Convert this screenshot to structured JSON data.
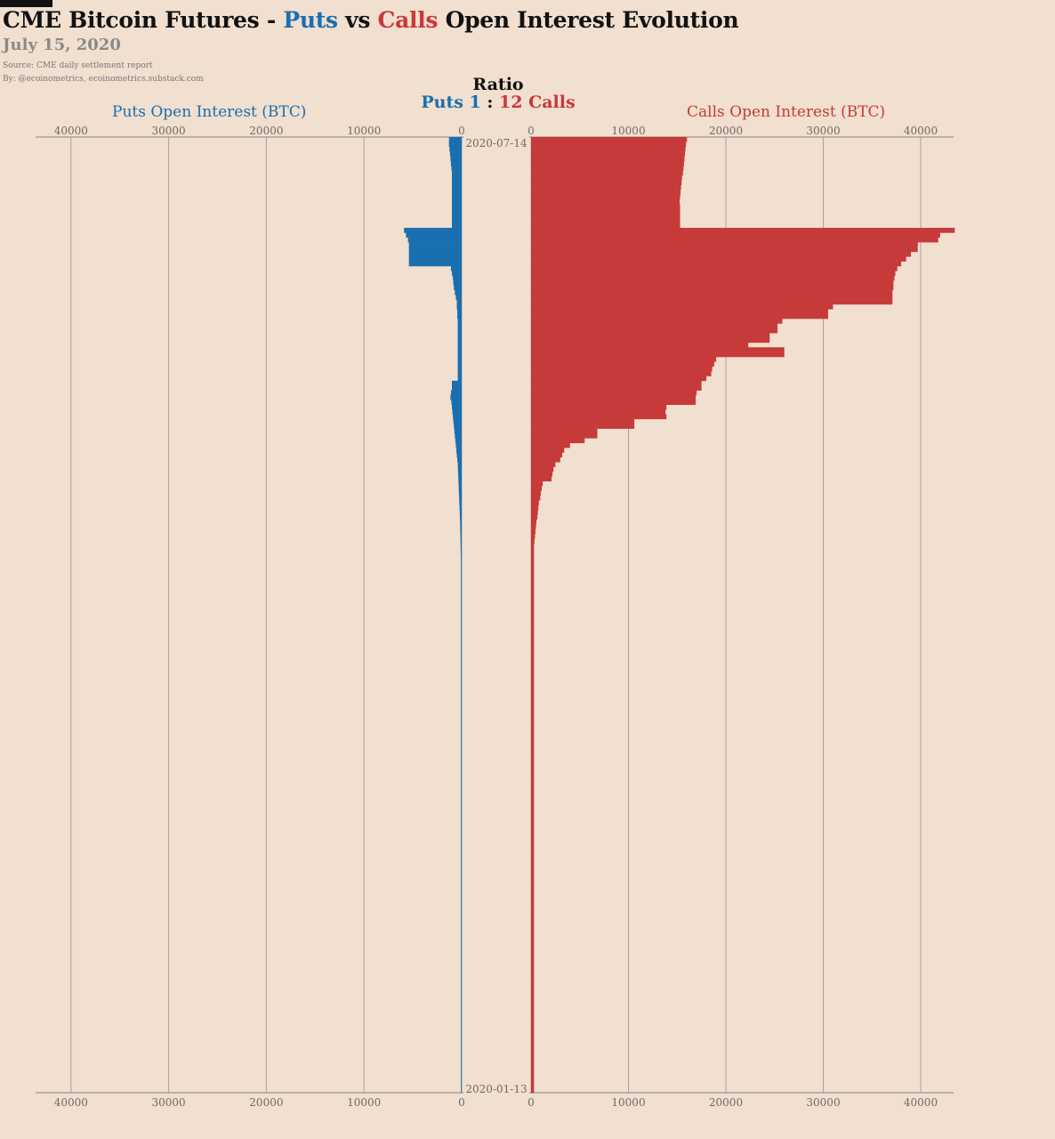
{
  "header": {
    "title_prefix": "CME Bitcoin Futures - ",
    "title_puts": "Puts",
    "title_vs": " vs ",
    "title_calls": "Calls",
    "title_suffix": " Open Interest Evolution",
    "date": "July 15, 2020",
    "source": "Source: CME daily settlement report",
    "by": "By: @ecoinometrics, ecoinometrics.substack.com"
  },
  "ratio": {
    "title": "Ratio",
    "puts_label": "Puts 1",
    "separator": " : ",
    "calls_label": "12 Calls"
  },
  "colors": {
    "puts": "#1a6fb0",
    "calls": "#c63a3a",
    "background": "#f1dfcf",
    "grid": "#a9a29b"
  },
  "chart_data": {
    "type": "bar",
    "orientation": "horizontal-mirrored",
    "grid": true,
    "date_range": [
      "2020-01-13",
      "2020-07-14"
    ],
    "date_labels": {
      "top": "2020-07-14",
      "bottom": "2020-01-13"
    },
    "puts_axis": {
      "label": "Puts Open Interest (BTC)",
      "ticks": [
        40000,
        30000,
        20000,
        10000,
        0
      ],
      "range": [
        0,
        44000
      ]
    },
    "calls_axis": {
      "label": "Calls Open Interest (BTC)",
      "ticks": [
        0,
        10000,
        20000,
        30000,
        40000
      ],
      "range": [
        0,
        43500
      ]
    },
    "series": [
      {
        "name": "Puts",
        "color": "#1a6fb0",
        "values": [
          1300,
          1300,
          1250,
          1200,
          1150,
          1100,
          1050,
          1000,
          1000,
          1000,
          1000,
          1000,
          1000,
          1000,
          1000,
          1000,
          1000,
          1000,
          1000,
          5900,
          5700,
          5500,
          5400,
          5400,
          5400,
          5400,
          5400,
          1100,
          1000,
          900,
          850,
          800,
          700,
          600,
          500,
          500,
          450,
          450,
          400,
          400,
          400,
          400,
          400,
          400,
          400,
          400,
          400,
          400,
          400,
          400,
          400,
          1000,
          1000,
          1100,
          1150,
          1050,
          1000,
          950,
          900,
          850,
          800,
          750,
          700,
          650,
          600,
          550,
          500,
          450,
          400,
          380,
          360,
          340,
          320,
          300,
          280,
          260,
          240,
          220,
          200,
          180,
          160,
          150,
          140,
          130,
          120,
          110,
          100,
          90,
          80,
          80,
          80,
          80,
          80,
          80,
          80,
          80,
          80,
          80,
          80,
          80,
          80,
          80,
          80,
          80,
          80,
          80,
          80,
          80,
          80,
          80,
          80,
          80,
          80,
          80,
          80,
          80,
          80,
          80,
          80,
          80,
          80,
          80,
          80,
          80,
          80,
          80,
          80,
          80,
          80,
          80,
          80,
          80,
          80,
          80,
          80,
          80,
          80,
          80,
          80,
          80,
          80,
          80,
          80,
          80,
          80,
          80,
          80,
          80,
          80,
          80,
          80,
          80,
          80,
          80,
          80,
          80,
          80,
          80,
          80,
          80,
          80,
          80,
          80,
          80,
          80,
          80,
          80,
          80,
          80,
          80,
          80,
          80,
          80,
          80,
          80,
          80,
          80,
          80,
          80,
          80,
          80,
          80,
          80,
          80,
          80,
          80,
          80,
          80,
          80,
          80,
          80,
          80,
          80,
          80,
          80,
          80,
          80,
          80,
          80,
          80,
          80,
          80,
          80,
          80,
          80,
          80,
          80,
          80,
          80,
          80,
          80,
          80,
          80,
          80,
          80
        ]
      },
      {
        "name": "Calls",
        "color": "#c63a3a",
        "values": [
          16000,
          15900,
          15850,
          15800,
          15750,
          15700,
          15650,
          15600,
          15500,
          15450,
          15400,
          15350,
          15300,
          15250,
          15300,
          15300,
          15300,
          15300,
          15300,
          43500,
          42000,
          41800,
          39700,
          39700,
          39000,
          38500,
          38000,
          37600,
          37400,
          37300,
          37200,
          37200,
          37100,
          37100,
          37100,
          31000,
          30500,
          30500,
          25800,
          25300,
          25300,
          24500,
          24500,
          22300,
          26000,
          26000,
          19000,
          18800,
          18600,
          18500,
          18000,
          17500,
          17500,
          17000,
          16900,
          16900,
          13900,
          13800,
          13900,
          10600,
          10600,
          6800,
          6800,
          5500,
          4000,
          3400,
          3200,
          3000,
          2500,
          2300,
          2200,
          2100,
          1200,
          1100,
          1000,
          950,
          800,
          750,
          700,
          650,
          550,
          500,
          450,
          400,
          350,
          300,
          300,
          300,
          300,
          300,
          300,
          300,
          300,
          300,
          300,
          300,
          300,
          300,
          300,
          300,
          300,
          300,
          300,
          300,
          300,
          300,
          300,
          300,
          300,
          300,
          300,
          300,
          300,
          300,
          300,
          300,
          300,
          300,
          300,
          300,
          300,
          300,
          300,
          300,
          300,
          300,
          300,
          300,
          300,
          300,
          300,
          300,
          300,
          300,
          300,
          300,
          300,
          300,
          300,
          300,
          300,
          300,
          300,
          300,
          300,
          300,
          300,
          300,
          300,
          300,
          300,
          300,
          300,
          300,
          300,
          300,
          300,
          300,
          300,
          300,
          300,
          300,
          300,
          300,
          300,
          300,
          300,
          300,
          300,
          300,
          300,
          300,
          300,
          300,
          300,
          300,
          300,
          300,
          300,
          300,
          300,
          300,
          300,
          300,
          300,
          300,
          300,
          300,
          300,
          300,
          300,
          300,
          300,
          300,
          300,
          300,
          300,
          300,
          300,
          300
        ]
      }
    ]
  }
}
